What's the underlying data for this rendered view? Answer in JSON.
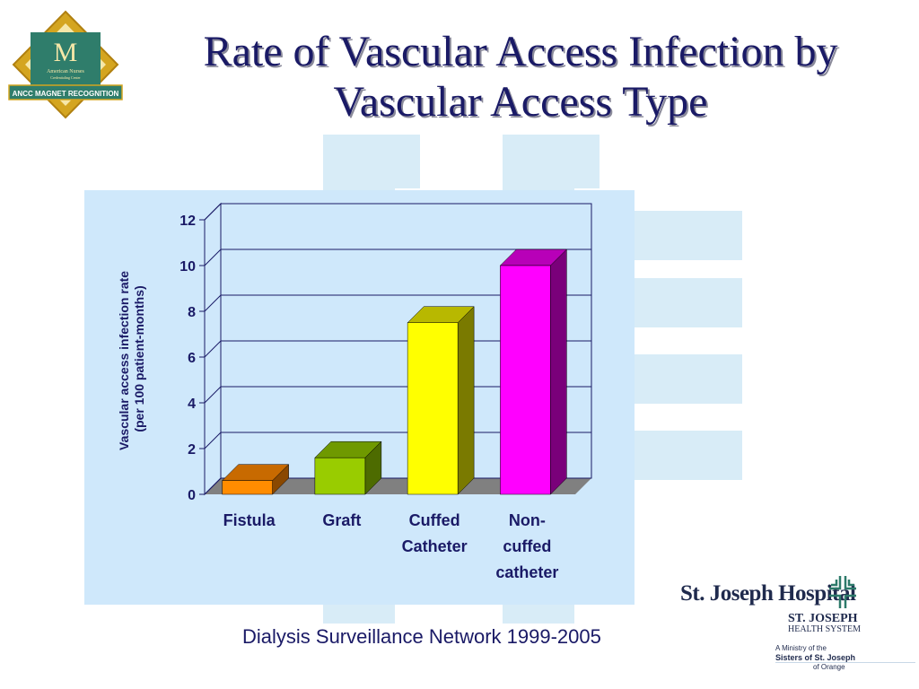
{
  "slide": {
    "title_line1": "Rate of Vascular Access Infection by",
    "title_line2": "Vascular Access Type",
    "source_note": "Dialysis Surveillance Network 1999-2005"
  },
  "magnet_logo": {
    "letter": "M",
    "line1": "American Nurses",
    "line2": "Credentialing Center",
    "banner": "ANCC MAGNET RECOGNITION"
  },
  "hospital_logo": {
    "name": "St. Joseph Hospital",
    "system_line1": "ST. JOSEPH",
    "system_line2": "HEALTH SYSTEM",
    "ministry_line1": "A Ministry of the",
    "ministry_line2": "Sisters of St. Joseph",
    "ministry_line3": "of Orange"
  },
  "chart_data": {
    "type": "bar",
    "categories": [
      [
        "Fistula"
      ],
      [
        "Graft"
      ],
      [
        "Cuffed",
        "Catheter"
      ],
      [
        "Non-",
        "cuffed",
        "catheter"
      ]
    ],
    "values": [
      0.6,
      1.6,
      7.5,
      10
    ],
    "bar_colors": [
      {
        "front": "#ff8c00",
        "top": "#c86a00",
        "side": "#8a4800"
      },
      {
        "front": "#99cc00",
        "top": "#6f9900",
        "side": "#4d6b00"
      },
      {
        "front": "#ffff00",
        "top": "#b8b800",
        "side": "#7a7a00"
      },
      {
        "front": "#ff00ff",
        "top": "#b800b8",
        "side": "#7a007a"
      }
    ],
    "ylabel_line1": "Vascular access infection rate",
    "ylabel_line2": "(per 100 patient-months)",
    "ylim": [
      0,
      12
    ],
    "yticks": [
      0,
      2,
      4,
      6,
      8,
      10,
      12
    ],
    "grid": true,
    "style": "3d"
  }
}
